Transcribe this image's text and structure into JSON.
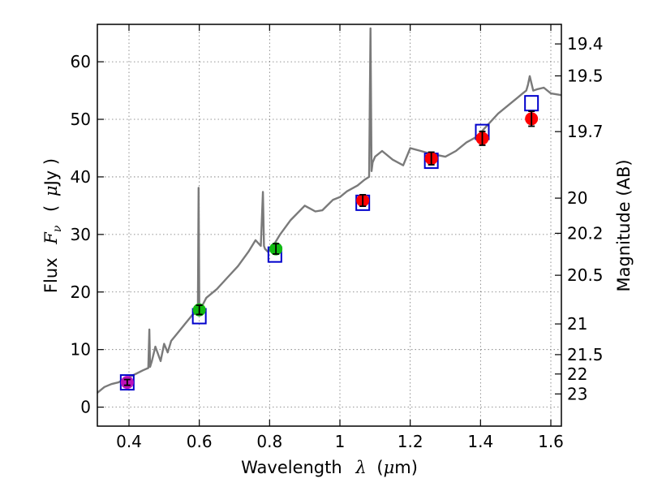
{
  "chart_data": {
    "type": "scatter",
    "title": "",
    "xlabel": "Wavelength",
    "xlabel_symbol": "λ",
    "xlabel_unit_open": "(",
    "xlabel_unit_mu": "μ",
    "xlabel_unit_rest": "m)",
    "ylabel": "Flux",
    "ylabel_symbol": "F",
    "ylabel_subscript": "ν",
    "ylabel_unit_open": "(",
    "ylabel_unit_mu": "μ",
    "ylabel_unit_rest": "Jy )",
    "y2label": "Magnitude (AB)",
    "xlim": [
      0.31,
      1.63
    ],
    "ylim": [
      -3.3,
      66.5
    ],
    "grid": true,
    "x_ticks": [
      0.4,
      0.6,
      0.8,
      1.0,
      1.2,
      1.4,
      1.6
    ],
    "x_tick_labels": [
      "0.4",
      "0.6",
      "0.8",
      "1",
      "1.2",
      "1.4",
      "1.6"
    ],
    "y_ticks": [
      0,
      10,
      20,
      30,
      40,
      50,
      60
    ],
    "y_tick_labels": [
      "0",
      "10",
      "20",
      "30",
      "40",
      "50",
      "60"
    ],
    "y2_ticks": [
      19.4,
      19.5,
      19.7,
      20,
      20.2,
      20.5,
      21,
      21.5,
      22,
      23
    ],
    "y2_tick_labels": [
      "19.4",
      "19.5",
      "19.7",
      "20",
      "20.2",
      "20.5",
      "21",
      "21.5",
      "22",
      "23"
    ],
    "spectrum": {
      "name": "spectrum",
      "color": "#7a7a7a",
      "x": [
        0.31,
        0.33,
        0.35,
        0.37,
        0.385,
        0.4,
        0.42,
        0.44,
        0.455,
        0.458,
        0.46,
        0.465,
        0.475,
        0.49,
        0.5,
        0.51,
        0.52,
        0.54,
        0.56,
        0.58,
        0.596,
        0.598,
        0.6,
        0.602,
        0.605,
        0.62,
        0.65,
        0.68,
        0.71,
        0.74,
        0.76,
        0.775,
        0.781,
        0.784,
        0.787,
        0.795,
        0.81,
        0.83,
        0.86,
        0.9,
        0.93,
        0.95,
        0.98,
        1.0,
        1.02,
        1.05,
        1.07,
        1.083,
        1.087,
        1.09,
        1.093,
        1.1,
        1.12,
        1.15,
        1.18,
        1.2,
        1.23,
        1.26,
        1.3,
        1.33,
        1.36,
        1.39,
        1.42,
        1.45,
        1.48,
        1.5,
        1.52,
        1.53,
        1.535,
        1.54,
        1.55,
        1.56,
        1.58,
        1.6,
        1.63
      ],
      "y": [
        2.5,
        3.5,
        4,
        4.3,
        4.8,
        5.2,
        5.8,
        6.4,
        6.8,
        13.5,
        7,
        8,
        10.5,
        8,
        11,
        9.5,
        11.5,
        13,
        14.5,
        16,
        16.5,
        38.1,
        17,
        16.8,
        17.2,
        19,
        20.5,
        22.5,
        24.5,
        27,
        29,
        28,
        37.4,
        28,
        27.5,
        27,
        28,
        30,
        32.5,
        35,
        34,
        34.2,
        36,
        36.5,
        37.5,
        38.5,
        39.5,
        40,
        65.8,
        41,
        42.5,
        43.5,
        44.5,
        43,
        42,
        45,
        44.5,
        44,
        43.5,
        44.5,
        46,
        47,
        49,
        51,
        52.5,
        53.5,
        54.5,
        55,
        56,
        57.5,
        55,
        55.2,
        55.5,
        54.5,
        54.2
      ]
    },
    "series": [
      {
        "name": "model (open squares)",
        "color": "#0000cc",
        "marker": "square",
        "x": [
          0.395,
          0.6,
          0.815,
          1.065,
          1.26,
          1.405,
          1.545
        ],
        "y": [
          4.3,
          15.8,
          26.5,
          35.5,
          42.8,
          47.8,
          52.8
        ]
      },
      {
        "name": "observed (filled circles)",
        "marker": "circle",
        "x": [
          0.395,
          0.6,
          0.818,
          1.065,
          1.26,
          1.405,
          1.545
        ],
        "y": [
          4.3,
          16.9,
          27.5,
          35.9,
          43.2,
          46.7,
          50.1
        ],
        "yerr": [
          0.5,
          0.8,
          0.9,
          1.0,
          1.1,
          1.2,
          1.3
        ],
        "colors": [
          "#bb11bb",
          "#11bb11",
          "#11bb11",
          "#ff0000",
          "#ff0000",
          "#ff0000",
          "#ff0000"
        ]
      }
    ]
  }
}
